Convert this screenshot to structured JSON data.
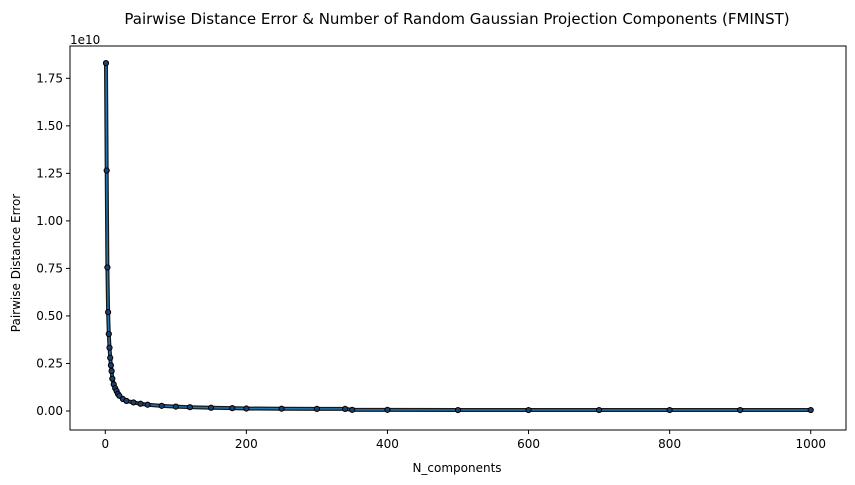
{
  "chart_data": {
    "type": "line",
    "title": "Pairwise Distance Error & Number of Random Gaussian Projection Components (FMINST)",
    "xlabel": "N_components",
    "ylabel": "Pairwise Distance Error",
    "y_offset_label": "1e10",
    "xlim": [
      -50,
      1050
    ],
    "ylim": [
      -0.1,
      1.92
    ],
    "y_scale_factor": 10000000000,
    "x_ticks": [
      0,
      200,
      400,
      600,
      800,
      1000
    ],
    "y_ticks": [
      0.0,
      0.25,
      0.5,
      0.75,
      1.0,
      1.25,
      1.5,
      1.75
    ],
    "x_tick_labels": [
      "0",
      "200",
      "400",
      "600",
      "800",
      "1000"
    ],
    "y_tick_labels": [
      "0.00",
      "0.25",
      "0.50",
      "0.75",
      "1.00",
      "1.25",
      "1.50",
      "1.75"
    ],
    "grid": false,
    "line_color": "#1f77b4",
    "marker_face_color": "#1f3f6f",
    "marker_edge_color": "#000000",
    "series": [
      {
        "x": [
          1,
          2,
          3,
          4,
          5,
          6,
          7,
          8,
          9,
          10,
          12,
          14,
          16,
          18,
          20,
          25,
          30,
          40,
          50,
          60,
          80,
          100,
          120,
          150,
          180,
          200,
          250,
          300,
          340,
          350,
          400,
          500,
          600,
          700,
          800,
          900,
          1000
        ],
        "y": [
          1.83,
          1.265,
          0.755,
          0.52,
          0.405,
          0.333,
          0.28,
          0.24,
          0.21,
          0.17,
          0.14,
          0.12,
          0.105,
          0.09,
          0.08,
          0.063,
          0.053,
          0.045,
          0.038,
          0.033,
          0.027,
          0.023,
          0.02,
          0.017,
          0.015,
          0.013,
          0.012,
          0.011,
          0.011,
          0.006,
          0.006,
          0.005,
          0.005,
          0.005,
          0.005,
          0.005,
          0.005
        ]
      }
    ]
  }
}
